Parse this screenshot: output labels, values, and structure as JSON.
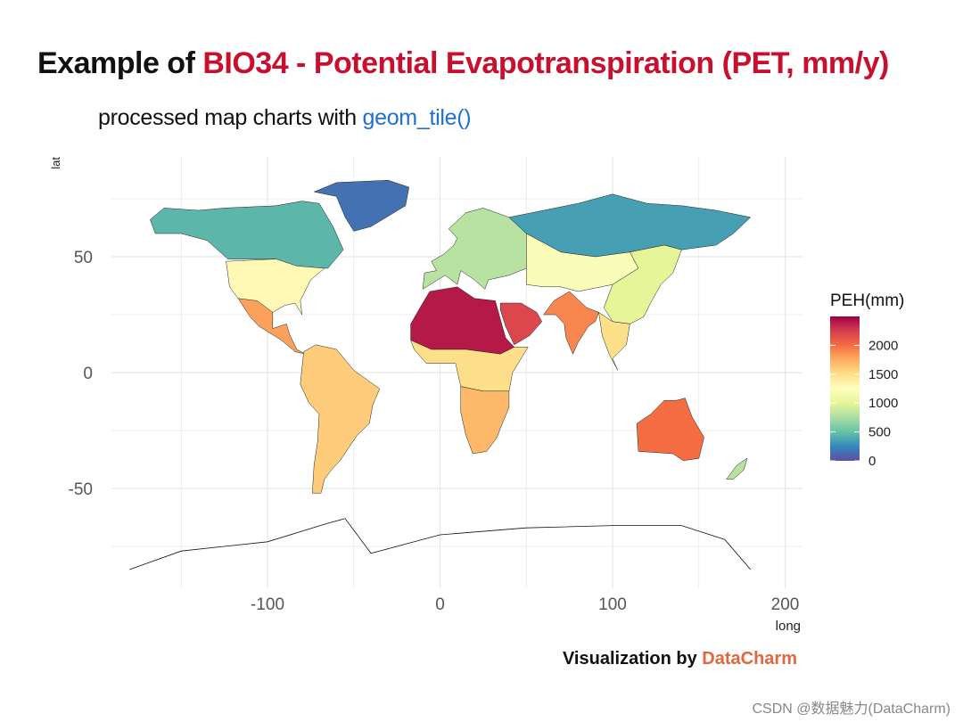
{
  "title": {
    "prefix": "Example of ",
    "highlight": "BIO34 - Potential Evapotranspiration (PET, mm/y)"
  },
  "subtitle": {
    "prefix": "processed map charts with ",
    "code": "geom_tile()"
  },
  "caption": {
    "prefix": "Visualization by ",
    "brand": "DataCharm"
  },
  "watermark": "CSDN @数据魅力(DataCharm)",
  "colors": {
    "title_highlight": "#c8102e",
    "code": "#1f6fd6",
    "brand": "#e0673f",
    "ocean": "#ffffff",
    "grid": "#e6e6e6"
  },
  "chart_data": {
    "type": "heatmap",
    "xlabel": "long",
    "ylabel": "lat",
    "xlim": [
      -180,
      200
    ],
    "ylim": [
      -90,
      85
    ],
    "xticks": [
      -100,
      0,
      100,
      200
    ],
    "yticks": [
      50,
      0,
      -50
    ],
    "legend": {
      "title": "PEH(mm)",
      "position": "right",
      "ticks": [
        0,
        500,
        1000,
        1500,
        2000
      ],
      "range": [
        0,
        2500
      ],
      "palette": [
        "#5e4fa2",
        "#3288bd",
        "#66c2a5",
        "#abdda4",
        "#e6f598",
        "#ffffbf",
        "#fee08b",
        "#fdae61",
        "#f46d43",
        "#d53e4f",
        "#9e0142"
      ]
    },
    "grid": true,
    "regions": [
      {
        "name": "Greenland",
        "value": 150
      },
      {
        "name": "Canada & Alaska",
        "value": 450
      },
      {
        "name": "United States",
        "value": 1300
      },
      {
        "name": "Mexico & Central America",
        "value": 1800
      },
      {
        "name": "South America",
        "value": 1600
      },
      {
        "name": "Europe",
        "value": 800
      },
      {
        "name": "Siberia",
        "value": 350
      },
      {
        "name": "Central Asia",
        "value": 1200
      },
      {
        "name": "Sahara & Sahel",
        "value": 2400
      },
      {
        "name": "Central Africa",
        "value": 1500
      },
      {
        "name": "Southern Africa",
        "value": 1700
      },
      {
        "name": "Arabia",
        "value": 2200
      },
      {
        "name": "India",
        "value": 1900
      },
      {
        "name": "East Asia",
        "value": 1000
      },
      {
        "name": "Southeast Asia",
        "value": 1500
      },
      {
        "name": "Australia",
        "value": 2000
      },
      {
        "name": "New Zealand",
        "value": 800
      },
      {
        "name": "Antarctica",
        "value": null
      }
    ]
  }
}
